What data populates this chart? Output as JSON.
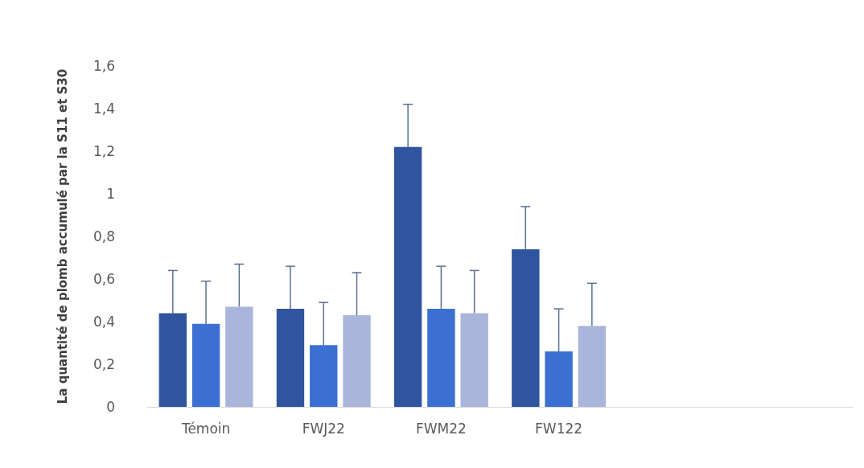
{
  "chart_data": {
    "type": "bar",
    "ylabel": "La quantité de plomb accumulé par la S11 et S30",
    "categories": [
      "Témoin",
      "FWJ22",
      "FWM22",
      "FW122",
      null,
      null
    ],
    "series": [
      {
        "color": "#2f559f",
        "values": [
          0.44,
          0.46,
          1.22,
          0.74,
          null,
          null
        ],
        "errors": [
          [
            0.44,
            0.64
          ],
          [
            0.46,
            0.66
          ],
          [
            1.22,
            1.42
          ],
          [
            0.74,
            0.94
          ],
          null,
          null
        ]
      },
      {
        "color": "#3b6fd2",
        "values": [
          0.39,
          0.29,
          0.46,
          0.26,
          null,
          null
        ],
        "errors": [
          [
            0.39,
            0.59
          ],
          [
            0.29,
            0.49
          ],
          [
            0.46,
            0.66
          ],
          [
            0.26,
            0.46
          ],
          null,
          null
        ]
      },
      {
        "color": "#a9b5db",
        "values": [
          0.47,
          0.43,
          0.44,
          0.38,
          null,
          null
        ],
        "errors": [
          [
            0.47,
            0.67
          ],
          [
            0.43,
            0.63
          ],
          [
            0.44,
            0.64
          ],
          [
            0.38,
            0.58
          ],
          null,
          null
        ]
      }
    ],
    "ylim": [
      0,
      1.6
    ],
    "yticks": [
      0,
      {
        "value": 0.2,
        "label": "0,2"
      },
      {
        "value": 0.4,
        "label": "0,4"
      },
      {
        "value": 0.6,
        "label": "0,6"
      },
      {
        "value": 0.8,
        "label": "0,8"
      },
      1,
      {
        "value": 1.2,
        "label": "1,2"
      },
      {
        "value": 1.4,
        "label": "1,4"
      },
      {
        "value": 1.6,
        "label": "1,6"
      }
    ],
    "grid": false
  }
}
